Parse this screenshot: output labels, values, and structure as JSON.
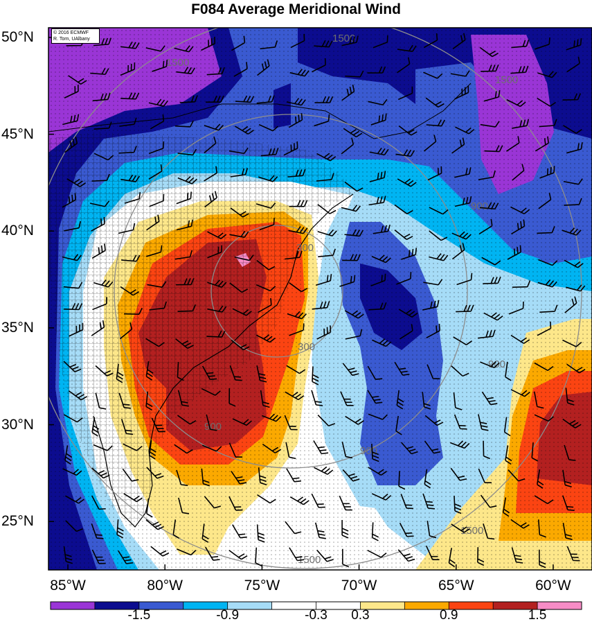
{
  "title": "F084 Average Meridional Wind",
  "credit": {
    "line1": "© 2016 ECMWF",
    "line2": "R. Torn, UAlbany"
  },
  "map": {
    "lat_range": [
      22.5,
      50.5
    ],
    "lon_range": [
      -86,
      -58
    ],
    "lat_ticks": [
      {
        "label": "50°N",
        "value": 50
      },
      {
        "label": "45°N",
        "value": 45
      },
      {
        "label": "40°N",
        "value": 40
      },
      {
        "label": "35°N",
        "value": 35
      },
      {
        "label": "30°N",
        "value": 30
      },
      {
        "label": "25°N",
        "value": 25
      }
    ],
    "lon_ticks": [
      {
        "label": "85°W",
        "value": -85
      },
      {
        "label": "80°W",
        "value": -80
      },
      {
        "label": "75°W",
        "value": -75
      },
      {
        "label": "70°W",
        "value": -70
      },
      {
        "label": "65°W",
        "value": -65
      },
      {
        "label": "60°W",
        "value": -60
      }
    ],
    "range_ring_labels": [
      "300",
      "300",
      "900",
      "900",
      "900",
      "900",
      "1500",
      "1500",
      "1500",
      "1500",
      "1500"
    ],
    "colors": {
      "land_hatch": "#000000",
      "ring": "#8c8c8c"
    }
  },
  "colorbar": {
    "colors": [
      "#9a35d6",
      "#0c0c8f",
      "#3a5ad1",
      "#00b4f2",
      "#a6dcf7",
      "#ffffff",
      "#ffffff",
      "#fde78a",
      "#fba900",
      "#fb4412",
      "#b32020",
      "#f78cc6"
    ],
    "labels": [
      {
        "text": "-1.5",
        "boundary": 2
      },
      {
        "text": "-0.9",
        "boundary": 4
      },
      {
        "text": "-0.3",
        "boundary": 6
      },
      {
        "text": "0.3",
        "boundary": 7
      },
      {
        "text": "0.9",
        "boundary": 9
      },
      {
        "text": "1.5",
        "boundary": 11
      }
    ]
  }
}
